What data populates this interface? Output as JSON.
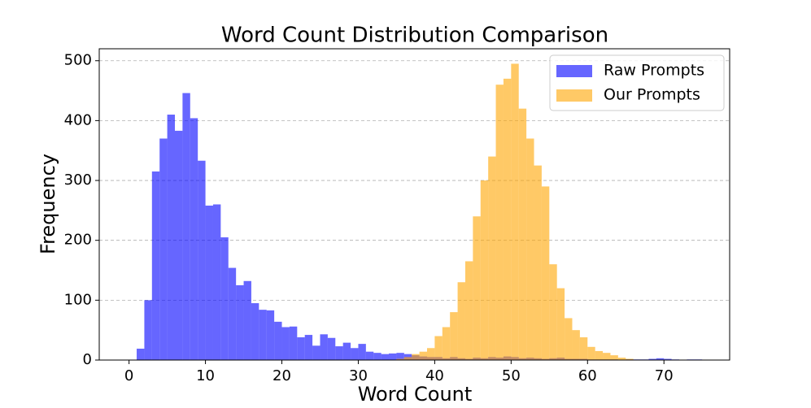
{
  "chart_data": {
    "type": "histogram",
    "title": "Word Count Distribution Comparison",
    "x_label": "Word Count",
    "y_label": "Frequency",
    "bins": [
      1,
      2,
      3,
      4,
      5,
      6,
      7,
      8,
      9,
      10,
      11,
      12,
      13,
      14,
      15,
      16,
      17,
      18,
      19,
      20,
      21,
      22,
      23,
      24,
      25,
      26,
      27,
      28,
      29,
      30,
      31,
      32,
      33,
      34,
      35,
      36,
      37,
      38,
      39,
      40,
      41,
      42,
      43,
      44,
      45,
      46,
      47,
      48,
      49,
      50,
      51,
      52,
      53,
      54,
      55,
      56,
      57,
      58,
      59,
      60,
      61,
      62,
      63,
      64,
      65,
      66,
      67,
      68,
      69,
      70,
      71,
      72,
      73,
      74,
      75,
      76
    ],
    "series": [
      {
        "name": "Raw Prompts",
        "color": "#0000ff",
        "alpha": 0.6,
        "values": [
          19,
          100,
          315,
          370,
          410,
          383,
          446,
          404,
          333,
          258,
          260,
          205,
          154,
          125,
          132,
          95,
          84,
          83,
          64,
          55,
          56,
          38,
          42,
          24,
          43,
          37,
          23,
          29,
          20,
          27,
          14,
          12,
          10,
          11,
          12,
          10,
          8,
          6,
          5,
          5,
          3,
          5,
          3,
          2,
          4,
          3,
          5,
          4,
          6,
          5,
          3,
          4,
          3,
          2,
          3,
          4,
          2,
          2,
          2,
          1,
          1,
          1,
          1,
          0,
          1,
          1,
          1,
          2,
          3,
          2,
          1,
          0,
          1,
          1,
          0
        ]
      },
      {
        "name": "Our Prompts",
        "color": "#ffa500",
        "alpha": 0.6,
        "values": [
          0,
          0,
          0,
          0,
          0,
          0,
          0,
          0,
          0,
          0,
          0,
          0,
          0,
          0,
          0,
          0,
          0,
          0,
          0,
          0,
          0,
          0,
          0,
          0,
          0,
          0,
          0,
          0,
          0,
          0,
          0,
          0,
          0,
          0,
          2,
          5,
          10,
          14,
          20,
          40,
          55,
          80,
          130,
          165,
          240,
          300,
          340,
          460,
          470,
          495,
          420,
          370,
          325,
          290,
          160,
          120,
          70,
          50,
          38,
          22,
          15,
          12,
          8,
          4,
          2,
          0,
          0,
          0,
          0,
          0,
          0,
          0,
          0,
          0,
          0
        ]
      }
    ],
    "xlim": [
      -3.9,
      78.6
    ],
    "xticks": [
      0,
      10,
      20,
      30,
      40,
      50,
      60,
      70
    ],
    "ylim": [
      0,
      520
    ],
    "yticks": [
      0,
      100,
      200,
      300,
      400,
      500
    ],
    "grid": true,
    "legend": "upper right"
  }
}
